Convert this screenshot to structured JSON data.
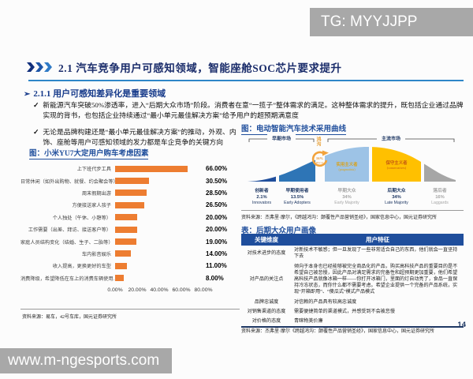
{
  "colors": {
    "accent_blue": "#2E86C8",
    "navy": "#1F3864",
    "bar_orange": "#ED7D31",
    "table_header_blue": "#1F4E9C",
    "watermark_gray": "#A8A8A8",
    "chasm_orange": "#F2A33C"
  },
  "icons": {
    "bullet_arrow": "➢",
    "check": "✓"
  },
  "watermark_top": {
    "text": "TG: MYYJJPP"
  },
  "watermark_bottom": {
    "text": "www.m-ngesports.com"
  },
  "page": {
    "title": "2.1 汽车竞争用户可感知领域，智能座舱SOC芯片要求提升",
    "number": "14"
  },
  "section": {
    "heading": "2.1.1 用户可感知差异化是重要领域",
    "bullets": [
      "新能源汽车突破50%渗透率，进入“后期大众市场”阶段。消费者在意“一揽子”整体需求的满足。这种整体需求的提升，既包括企业通过品牌实现的背书，也包括企业持续通过“最小单元最佳解决方案”给予用户的超预期满意度",
      "无论是品牌构建还是“最小单元最佳解决方案”的推动，外观、内饰、座舱等用户可感知领域的发力都是车企竞争的关键方向"
    ]
  },
  "chart_data": [
    {
      "type": "bar",
      "title": "图：小米YU7大定用户购车考虑因素",
      "categories": [
        "上下班代步工具",
        "日常休闲（如外出购物、就餐、约会聚会等）",
        "周末假期出游",
        "方便接送家人孩子",
        "个人独处（午休、小憩等）",
        "工作需要（出差、拜访、接送客户等）",
        "家庭人员结构变化（结婚、生子、二胎等）",
        "车内影音娱乐",
        "收入提高，更换更好的车型",
        "消费降级，希望降低在车上的消费车辆使用…"
      ],
      "values": [
        66.0,
        30.5,
        28.5,
        26.5,
        20.0,
        20.0,
        19.0,
        14.0,
        11.0,
        8.0
      ],
      "value_labels": [
        "66.00%",
        "30.50%",
        "28.50%",
        "26.50%",
        "20.00%",
        "20.00%",
        "19.00%",
        "14.00%",
        "11.00%",
        "8.00%"
      ],
      "axis_ticks": [
        "0.00%",
        "20.00%",
        "40.00%",
        "60.00%",
        "80.00%"
      ],
      "xlim": [
        0,
        80
      ],
      "grid": false,
      "bar_color": "#ED7D31",
      "source": "资料来源：易车，42号车库，国元证券研究所"
    },
    {
      "type": "area",
      "title": "图：电动智能汽车技术采用曲线",
      "market_labels": {
        "early": "早期市场",
        "chasm": "鸿沟",
        "mainstream": "主流市场"
      },
      "chasm_badge": "16%",
      "chasm_badge_sub": "Discon",
      "segments": [
        {
          "name": "创新者",
          "pct": "2.1%",
          "en": "Innovators",
          "color": "#1F4E9C",
          "emph": true
        },
        {
          "name": "早期使用者",
          "pct": "13.5%",
          "en": "Early Adopters",
          "color": "#2E75B6",
          "emph": true
        },
        {
          "name": "早期大众",
          "pct": "34%",
          "en": "Early Majority",
          "color": "#9DC3E6",
          "emph": false,
          "inner": "实用主义者",
          "inner_en": "(pragmatists)"
        },
        {
          "name": "后期大众",
          "pct": "34%",
          "en": "Late Majority",
          "color": "#FFC000",
          "emph": true,
          "inner": "保守主义者",
          "inner_en": "(conservatives)"
        },
        {
          "name": "落后者",
          "pct": "16%",
          "en": "Laggards",
          "color": "#A6A6A6",
          "emph": false
        }
      ],
      "source": "资料来源：杰弗里·摩尔，《跨越鸿沟：颠覆性产品营销圣经》，国家信息中心，国元证券研究所"
    }
  ],
  "persona_table": {
    "title": "表：后期大众用户画像",
    "headers": [
      "关键维度",
      "用户特征"
    ],
    "rows": [
      [
        "对技术进步的态度",
        "对新技术不敏感；但一旦发现了一些非常适合自己的东西，他们就会一直坚持下去"
      ],
      [
        "对产品的关注点",
        "倾向于本身也已经能够被完全商品化的产品，购买高科技产品的重要目的是不希望自己被怠慢，因此产品对满足需求的完备性和超预期更加重要，他们希望高科技产品就像冰箱一样——你打开冰箱门，里面的灯自动亮了，食品一直保持冷冻状态，而你什么都不需要考虑。希望企业提供一个完备的产品系统，实现“开箱即用”、“傻瓜式”模式产品模式"
      ],
      [
        "品牌忠诚度",
        "对信赖的产品具有较高忠诚度"
      ],
      [
        "对销售渠道的态度",
        "需要便捷简单的渠道模式，并感受到不会被怠慢"
      ],
      [
        "对价格的态度",
        "青睐物美价廉"
      ]
    ],
    "source": "资料来源：杰弗里·摩尔《跨越鸿沟：颠覆性产品营销圣经》，国家信息中心，国元证券研究所"
  }
}
